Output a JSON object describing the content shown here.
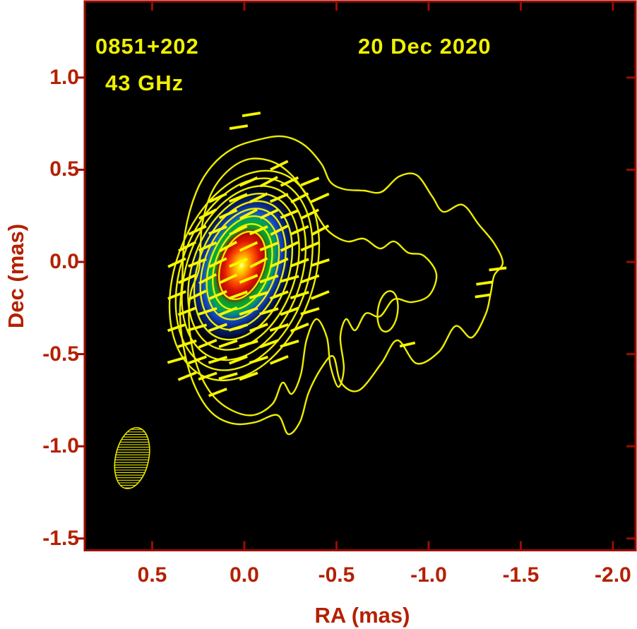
{
  "figure": {
    "source_name": "0851+202",
    "frequency": "43 GHz",
    "date": "20 Dec 2020",
    "xlabel": "RA (mas)",
    "ylabel": "Dec (mas)"
  },
  "colors": {
    "page_bg": "#ffffff",
    "plot_bg": "#000000",
    "axis_frame": "#9b0d00",
    "tick_label": "#b42000",
    "annotation_yellow": "#f0f000",
    "contour_yellow": "#eded00",
    "pol_tick_yellow": "#f8f800",
    "beam_yellow": "#e8e800"
  },
  "chart_data": {
    "type": "heatmap",
    "description": "VLBI total-intensity contour map of blazar 0851+202 at 43 GHz (20 Dec 2020): yellow intensity contours with rainbow color-scale core, linear-polarization tick overlay, and hatched restoring-beam ellipse at lower left.",
    "x_axis": {
      "label": "RA (mas)",
      "tick_values": [
        0.5,
        0.0,
        -0.5,
        -1.0,
        -1.5,
        -2.0
      ],
      "tick_labels": [
        "0.5",
        "0.0",
        "-0.5",
        "-1.0",
        "-1.5",
        "-2.0"
      ],
      "range": [
        0.866,
        -2.123
      ]
    },
    "y_axis": {
      "label": "Dec (mas)",
      "tick_values": [
        1.0,
        0.5,
        0.0,
        -0.5,
        -1.0,
        -1.5
      ],
      "tick_labels": [
        "1.0",
        "0.5",
        "0.0",
        "-0.5",
        "-1.0",
        "-1.5"
      ],
      "range": [
        1.413,
        -1.564
      ]
    },
    "core": {
      "ra": 0.015,
      "dec": -0.019,
      "rx": 0.276,
      "ry": 0.437,
      "rot": 20,
      "colormap_stops": [
        {
          "o": 0.0,
          "c": "#ffffc0"
        },
        {
          "o": 0.05,
          "c": "#ffee00"
        },
        {
          "o": 0.13,
          "c": "#ffaa00"
        },
        {
          "o": 0.22,
          "c": "#ff5500"
        },
        {
          "o": 0.32,
          "c": "#dd1500"
        },
        {
          "o": 0.43,
          "c": "#a80800"
        },
        {
          "o": 0.475,
          "c": "#1e8822"
        },
        {
          "o": 0.53,
          "c": "#00aa33"
        },
        {
          "o": 0.61,
          "c": "#009e5e"
        },
        {
          "o": 0.69,
          "c": "#1450c8"
        },
        {
          "o": 0.79,
          "c": "#0a2a88"
        },
        {
          "o": 0.9,
          "c": "#041243"
        },
        {
          "o": 1.0,
          "c": "#000000"
        }
      ]
    },
    "contours": {
      "ellipses": [
        {
          "ra": 0.011,
          "dec": -0.019,
          "rx": 0.115,
          "ry": 0.191,
          "rot": 20
        },
        {
          "ra": 0.01,
          "dec": -0.026,
          "rx": 0.148,
          "ry": 0.241,
          "rot": 20
        },
        {
          "ra": 0.008,
          "dec": -0.032,
          "rx": 0.18,
          "ry": 0.291,
          "rot": 20
        },
        {
          "ra": 0.007,
          "dec": -0.039,
          "rx": 0.213,
          "ry": 0.341,
          "rot": 20
        },
        {
          "ra": 0.006,
          "dec": -0.046,
          "rx": 0.245,
          "ry": 0.39,
          "rot": 20
        },
        {
          "ra": 0.004,
          "dec": -0.053,
          "rx": 0.278,
          "ry": 0.44,
          "rot": 20
        },
        {
          "ra": 0.003,
          "dec": -0.06,
          "rx": 0.31,
          "ry": 0.49,
          "rot": 20
        },
        {
          "ra": 0.001,
          "dec": -0.067,
          "rx": 0.343,
          "ry": 0.54,
          "rot": 20
        },
        {
          "ra": 0.0,
          "dec": -0.074,
          "rx": 0.375,
          "ry": 0.59,
          "rot": 20
        }
      ],
      "outer_path": [
        [
          0.337,
          -0.092
        ],
        [
          0.322,
          0.157
        ],
        [
          0.261,
          0.379
        ],
        [
          0.176,
          0.521
        ],
        [
          0.061,
          0.616
        ],
        [
          -0.073,
          0.662
        ],
        [
          -0.207,
          0.681
        ],
        [
          -0.322,
          0.636
        ],
        [
          -0.418,
          0.532
        ],
        [
          -0.467,
          0.433
        ],
        [
          -0.544,
          0.394
        ],
        [
          -0.648,
          0.387
        ],
        [
          -0.743,
          0.379
        ],
        [
          -0.839,
          0.463
        ],
        [
          -0.935,
          0.471
        ],
        [
          -1.019,
          0.356
        ],
        [
          -1.08,
          0.272
        ],
        [
          -1.184,
          0.31
        ],
        [
          -1.272,
          0.203
        ],
        [
          -1.356,
          0.1
        ],
        [
          -1.402,
          -0.004
        ],
        [
          -1.356,
          -0.073
        ],
        [
          -1.337,
          -0.168
        ],
        [
          -1.31,
          -0.283
        ],
        [
          -1.234,
          -0.41
        ],
        [
          -1.146,
          -0.348
        ],
        [
          -1.057,
          -0.486
        ],
        [
          -0.935,
          -0.551
        ],
        [
          -0.831,
          -0.425
        ],
        [
          -0.743,
          -0.551
        ],
        [
          -0.621,
          -0.697
        ],
        [
          -0.525,
          -0.655
        ],
        [
          -0.483,
          -0.513
        ],
        [
          -0.421,
          -0.57
        ],
        [
          -0.349,
          -0.708
        ],
        [
          -0.303,
          -0.865
        ],
        [
          -0.238,
          -0.934
        ],
        [
          -0.18,
          -0.831
        ],
        [
          -0.061,
          -0.869
        ],
        [
          0.061,
          -0.877
        ],
        [
          0.176,
          -0.819
        ],
        [
          0.264,
          -0.685
        ],
        [
          0.322,
          -0.502
        ],
        [
          0.349,
          -0.295
        ]
      ],
      "mid_path": [
        [
          0.245,
          -0.034
        ],
        [
          0.23,
          0.195
        ],
        [
          0.176,
          0.379
        ],
        [
          0.08,
          0.502
        ],
        [
          -0.034,
          0.559
        ],
        [
          -0.161,
          0.54
        ],
        [
          -0.264,
          0.463
        ],
        [
          -0.345,
          0.348
        ],
        [
          -0.406,
          0.234
        ],
        [
          -0.467,
          0.157
        ],
        [
          -0.559,
          0.111
        ],
        [
          -0.648,
          0.126
        ],
        [
          -0.736,
          0.073
        ],
        [
          -0.812,
          0.111
        ],
        [
          -0.889,
          0.05
        ],
        [
          -0.973,
          0.034
        ],
        [
          -1.042,
          -0.065
        ],
        [
          -1.004,
          -0.18
        ],
        [
          -0.908,
          -0.218
        ],
        [
          -0.812,
          -0.203
        ],
        [
          -0.736,
          -0.295
        ],
        [
          -0.659,
          -0.279
        ],
        [
          -0.601,
          -0.371
        ],
        [
          -0.552,
          -0.31
        ],
        [
          -0.521,
          -0.41
        ],
        [
          -0.54,
          -0.578
        ],
        [
          -0.51,
          -0.678
        ],
        [
          -0.467,
          -0.563
        ],
        [
          -0.448,
          -0.41
        ],
        [
          -0.391,
          -0.31
        ],
        [
          -0.337,
          -0.425
        ],
        [
          -0.307,
          -0.609
        ],
        [
          -0.257,
          -0.716
        ],
        [
          -0.207,
          -0.655
        ],
        [
          -0.153,
          -0.77
        ],
        [
          -0.046,
          -0.831
        ],
        [
          0.077,
          -0.8
        ],
        [
          0.184,
          -0.708
        ],
        [
          0.261,
          -0.551
        ],
        [
          0.299,
          -0.348
        ],
        [
          0.291,
          -0.168
        ]
      ],
      "small_loop": {
        "ra": -0.778,
        "dec": -0.268,
        "rx": 0.054,
        "ry": 0.111,
        "rot": 8
      }
    },
    "polarization": {
      "field": {
        "center_ra": -0.023,
        "center_dec": -0.092,
        "rx": 0.402,
        "ry": 0.647,
        "rot": 20,
        "dx": 0.111,
        "dy": 0.088,
        "stagger": 0.055,
        "tick_len": 0.105,
        "tick_angle": -19
      },
      "isolated_ticks": [
        {
          "ra": -0.038,
          "dec": 0.8,
          "len": 0.1,
          "angle": -9
        },
        {
          "ra": 0.031,
          "dec": 0.731,
          "len": 0.1,
          "angle": -9
        },
        {
          "ra": -1.375,
          "dec": -0.038,
          "len": 0.095,
          "angle": -7
        },
        {
          "ra": -1.303,
          "dec": -0.115,
          "len": 0.09,
          "angle": -8
        },
        {
          "ra": -1.294,
          "dec": -0.184,
          "len": 0.085,
          "angle": -8
        },
        {
          "ra": -0.885,
          "dec": -0.448,
          "len": 0.085,
          "angle": -13
        }
      ]
    },
    "beam": {
      "ra": 0.609,
      "dec": -1.064,
      "rx": 0.09,
      "ry": 0.168,
      "rot": 12,
      "hatch_spacing_px": 3.6
    }
  }
}
